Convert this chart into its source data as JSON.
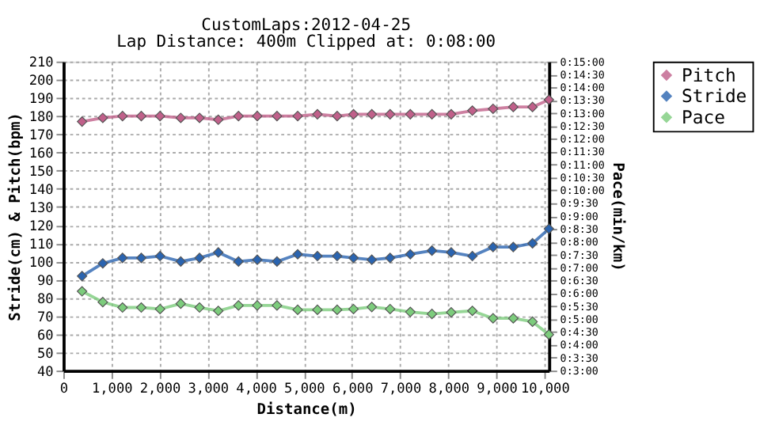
{
  "chart_data": {
    "type": "line",
    "title": "CustomLaps:2012-04-25",
    "subtitle": "Lap Distance: 400m Clipped at: 0:08:00",
    "xlabel": "Distance(m)",
    "ylabel": "Stride(cm) & Pitch(bpm)",
    "y2label": "Pace(min/km)",
    "x": [
      389,
      820,
      1230,
      1620,
      2010,
      2440,
      2830,
      3220,
      3640,
      4030,
      4440,
      4870,
      5280,
      5690,
      6030,
      6410,
      6790,
      7210,
      7660,
      8060,
      8500,
      8930,
      9350,
      9750,
      10090
    ],
    "series": [
      {
        "name": "Pitch",
        "color": "#c0608a",
        "values": [
          177,
          179,
          180,
          180,
          180,
          179,
          179,
          178,
          180,
          180,
          180,
          180,
          181,
          180,
          181,
          181,
          181,
          181,
          181,
          181,
          183,
          184,
          185,
          185,
          189
        ]
      },
      {
        "name": "Stride",
        "color": "#2a64b0",
        "values": [
          92,
          99,
          102,
          102,
          103,
          100,
          102,
          105,
          100,
          101,
          100,
          104,
          103,
          103,
          102,
          101,
          102,
          104,
          106,
          105,
          103,
          108,
          108,
          110,
          118
        ]
      },
      {
        "name": "Pace",
        "color": "#7ccc7c",
        "axis": "y2",
        "values": [
          6.08,
          5.66,
          5.45,
          5.45,
          5.39,
          5.6,
          5.45,
          5.32,
          5.53,
          5.53,
          5.53,
          5.36,
          5.36,
          5.36,
          5.39,
          5.47,
          5.39,
          5.28,
          5.2,
          5.26,
          5.32,
          5.03,
          5.03,
          4.9,
          4.4
        ]
      }
    ],
    "xlim": [
      0,
      10090
    ],
    "xticks": [
      0,
      {
        "value": 1000,
        "label": "1,000"
      },
      {
        "value": 2000,
        "label": "2,000"
      },
      {
        "value": 3000,
        "label": "3,000"
      },
      {
        "value": 4000,
        "label": "4,000"
      },
      {
        "value": 5000,
        "label": "5,000"
      },
      {
        "value": 6000,
        "label": "6,000"
      },
      {
        "value": 7000,
        "label": "7,000"
      },
      {
        "value": 8000,
        "label": "8,000"
      },
      {
        "value": 9000,
        "label": "9,000"
      },
      {
        "value": 10000,
        "label": "10,000"
      }
    ],
    "ylim": [
      40,
      210
    ],
    "yticks": [
      40,
      50,
      60,
      70,
      80,
      90,
      100,
      110,
      120,
      130,
      140,
      150,
      160,
      170,
      180,
      190,
      200,
      210
    ],
    "y2lim": [
      3,
      15
    ],
    "y2ticks": [
      {
        "value": 3,
        "label": "0:3:00"
      },
      {
        "value": 3.5,
        "label": "0:3:30"
      },
      {
        "value": 4,
        "label": "0:4:00"
      },
      {
        "value": 4.5,
        "label": "0:4:30"
      },
      {
        "value": 5,
        "label": "0:5:00"
      },
      {
        "value": 5.5,
        "label": "0:5:30"
      },
      {
        "value": 6,
        "label": "0:6:00"
      },
      {
        "value": 6.5,
        "label": "0:6:30"
      },
      {
        "value": 7,
        "label": "0:7:00"
      },
      {
        "value": 7.5,
        "label": "0:7:30"
      },
      {
        "value": 8,
        "label": "0:8:00"
      },
      {
        "value": 8.5,
        "label": "0:8:30"
      },
      {
        "value": 9,
        "label": "0:9:00"
      },
      {
        "value": 9.5,
        "label": "0:9:30"
      },
      {
        "value": 10,
        "label": "0:10:00"
      },
      {
        "value": 10.5,
        "label": "0:10:30"
      },
      {
        "value": 11,
        "label": "0:11:00"
      },
      {
        "value": 11.5,
        "label": "0:11:30"
      },
      {
        "value": 12,
        "label": "0:12:00"
      },
      {
        "value": 12.5,
        "label": "0:12:30"
      },
      {
        "value": 13,
        "label": "0:13:00"
      },
      {
        "value": 13.5,
        "label": "0:13:30"
      },
      {
        "value": 14,
        "label": "0:14:00"
      },
      {
        "value": 14.5,
        "label": "0:14:30"
      },
      {
        "value": 15,
        "label": "0:15:00"
      }
    ],
    "grid": true,
    "legend": "top right",
    "marker": "diamond",
    "line_style": "solid"
  }
}
